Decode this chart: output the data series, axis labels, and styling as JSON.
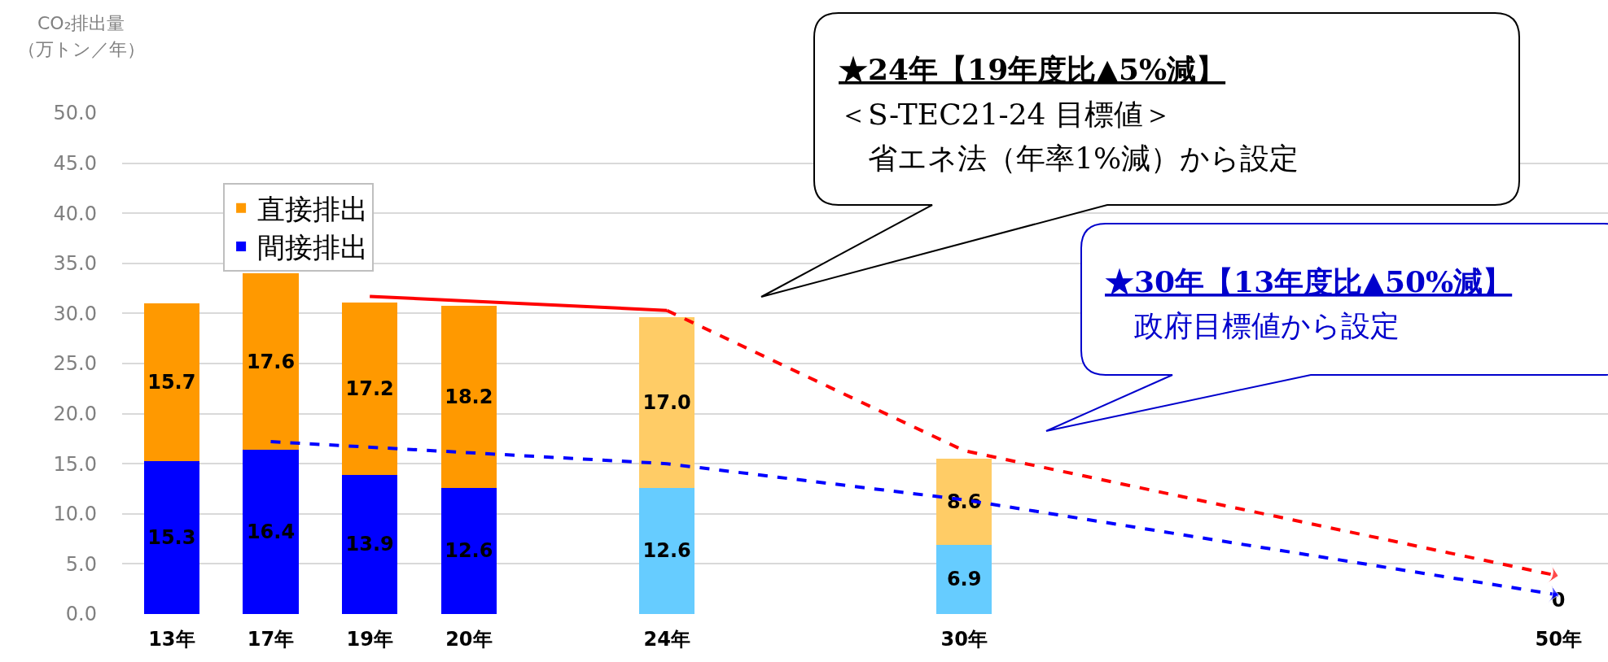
{
  "chart_data": {
    "type": "bar",
    "stacked": true,
    "ylabel": "CO₂排出量",
    "categories": [
      "13年",
      "17年",
      "19年",
      "20年",
      null,
      "24年",
      null,
      null,
      "30年",
      null,
      null,
      null,
      null,
      null,
      "50年"
    ],
    "series": [
      {
        "name": "間接排出",
        "color": "#0000ff",
        "colors": [
          null,
          null,
          null,
          null,
          null,
          "#66ccff",
          "#66ccff",
          "#66ccff",
          "#66ccff",
          "#66ccff",
          "#66ccff",
          "#66ccff",
          "#66ccff",
          "#66ccff",
          "#66ccff"
        ],
        "values": [
          15.3,
          16.4,
          13.9,
          12.6,
          null,
          12.6,
          null,
          null,
          6.9,
          null,
          null,
          null,
          null,
          null,
          0
        ],
        "value_labels": [
          "15.3",
          "16.4",
          "13.9",
          "12.6",
          null,
          "12.6",
          null,
          null,
          "6.9",
          null,
          null,
          null,
          null,
          null,
          "0"
        ]
      },
      {
        "name": "直接排出",
        "color": "#ff9900",
        "colors": [
          null,
          null,
          null,
          null,
          null,
          "#ffcc66",
          "#ffcc66",
          "#ffcc66",
          "#ffcc66",
          "#ffcc66",
          "#ffcc66",
          "#ffcc66",
          "#ffcc66",
          "#ffcc66",
          "#ffcc66"
        ],
        "values": [
          15.7,
          17.6,
          17.2,
          18.2,
          null,
          17.0,
          null,
          null,
          8.6,
          null,
          null,
          null,
          null,
          null,
          null
        ],
        "value_labels": [
          "15.7",
          "17.6",
          "17.2",
          "18.2",
          null,
          "17.0",
          null,
          null,
          "8.6",
          null,
          null,
          null,
          null,
          null,
          null
        ]
      },
      {
        "type": "line",
        "color": "#ff0000",
        "line_style": "solid",
        "x": [
          "19年",
          "24年"
        ],
        "values": [
          31.7,
          30.3
        ]
      },
      {
        "type": "line",
        "color": "#ff0000",
        "line_style": "dashed",
        "x": [
          "24年",
          "30年",
          "50年"
        ],
        "values": [
          30.3,
          16.3,
          3.8
        ]
      },
      {
        "type": "line",
        "color": "#0000ff",
        "line_style": "dashed",
        "x": [
          "17年",
          "24年",
          "30年",
          "50年"
        ],
        "values": [
          17.2,
          15.0,
          11.4,
          1.9
        ]
      }
    ],
    "ylim": [
      0,
      50
    ],
    "yticks": [
      {
        "value": 0,
        "label": "0.0"
      },
      {
        "value": 5,
        "label": "5.0"
      },
      {
        "value": 10,
        "label": "10.0"
      },
      {
        "value": 15,
        "label": "15.0"
      },
      {
        "value": 20,
        "label": "20.0"
      },
      {
        "value": 25,
        "label": "25.0"
      },
      {
        "value": 30,
        "label": "30.0"
      },
      {
        "value": 35,
        "label": "35.0"
      },
      {
        "value": 40,
        "label": "40.0"
      },
      {
        "value": 45,
        "label": "45.0"
      },
      {
        "value": 50,
        "label": "50.0"
      }
    ],
    "grid": "y",
    "legend": "top left",
    "annotations": [
      "（万トン／年）",
      "★24年【19年度比▲5%減】",
      "＜S-TEC21-24 目標値＞",
      "　省エネ法（年率1%減）から設定",
      "★30年【13年度比▲50%減】",
      "　政府目標値から設定"
    ]
  }
}
